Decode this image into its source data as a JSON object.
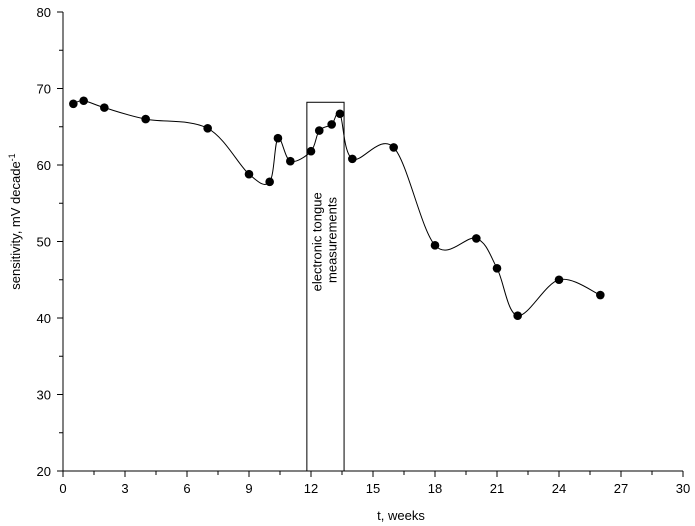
{
  "chart_data": {
    "type": "scatter",
    "title": "",
    "xlabel": "t, weeks",
    "ylabel": "sensitivity, mV decade",
    "ylabel_superscript": "-1",
    "xlim": [
      0,
      30
    ],
    "ylim": [
      20,
      80
    ],
    "x_ticks": [
      0,
      3,
      6,
      9,
      12,
      15,
      18,
      21,
      24,
      27,
      30
    ],
    "x_tick_labels": [
      "0",
      "3",
      "6",
      "9",
      "12",
      "15",
      "18",
      "21",
      "24",
      "27",
      "30"
    ],
    "y_ticks": [
      20,
      30,
      40,
      50,
      60,
      70,
      80
    ],
    "y_tick_labels": [
      "20",
      "30",
      "40",
      "50",
      "60",
      "70",
      "80"
    ],
    "grid": false,
    "legend": "none",
    "marker_color": "#000000",
    "line_color": "#000000",
    "series": [
      {
        "x": [
          0.5,
          1,
          2,
          4,
          7,
          9,
          10,
          10.4,
          11,
          12,
          12.4,
          13,
          13.4,
          14,
          16,
          18,
          20,
          21,
          22,
          24,
          26
        ],
        "y": [
          68.0,
          68.4,
          67.5,
          66.0,
          64.8,
          58.8,
          57.8,
          63.5,
          60.5,
          61.8,
          64.5,
          65.3,
          66.7,
          60.8,
          62.3,
          49.5,
          50.4,
          46.5,
          40.3,
          45.0,
          43.0
        ]
      }
    ],
    "annotation": {
      "lines": [
        "electronic tongue",
        "measurements"
      ],
      "x_range": [
        11.8,
        13.6
      ],
      "y_range": [
        20,
        68.2
      ]
    }
  }
}
